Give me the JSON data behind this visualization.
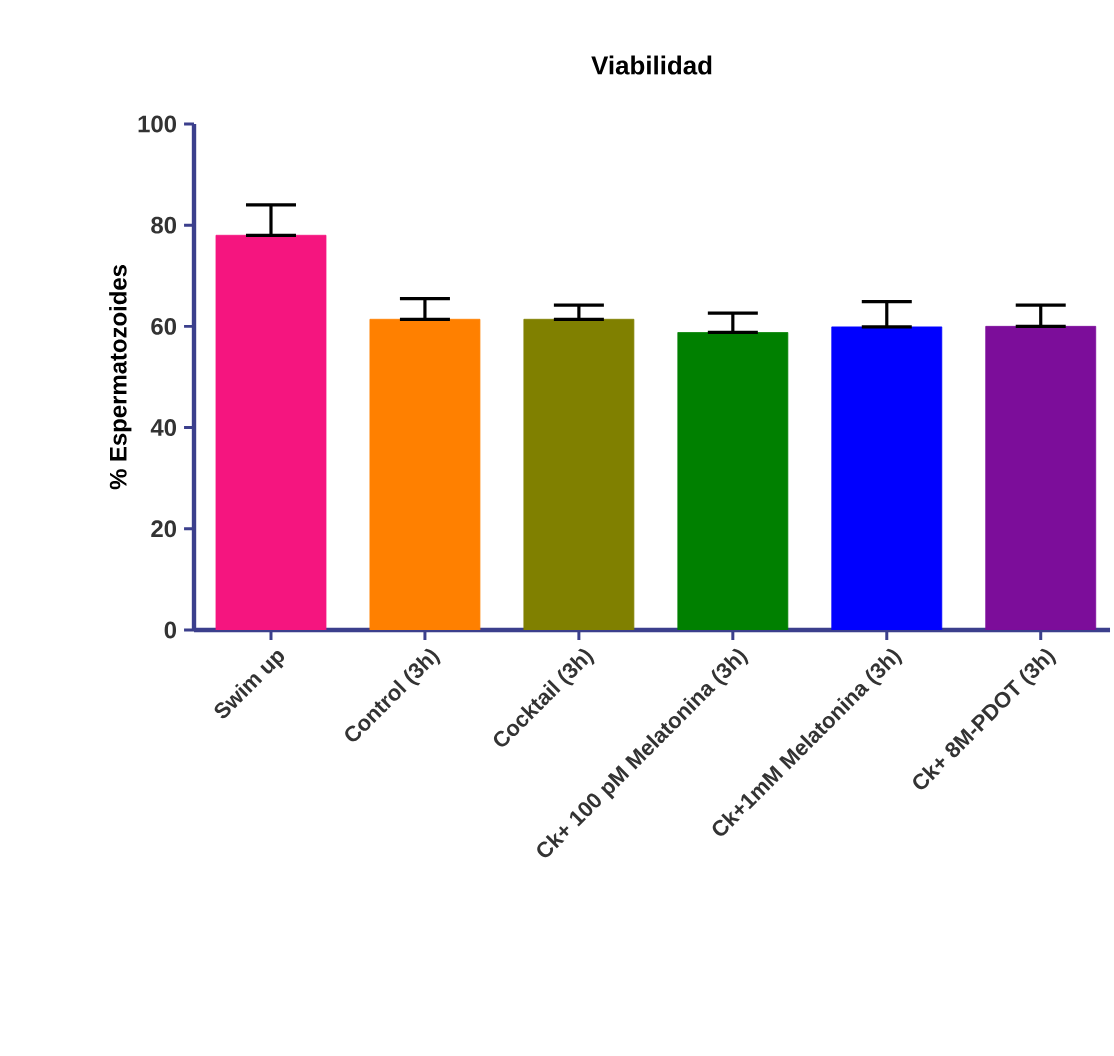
{
  "chart_data": {
    "type": "bar",
    "title": "Viabilidad",
    "ylabel": "% Espermatozoides",
    "categories": [
      "Swim up",
      "Control (3h)",
      "Cocktail (3h)",
      "Ck+ 100 pM Melatonina (3h)",
      "Ck+1mM Melatonina (3h)",
      "Ck+ 8M-PDOT (3h)"
    ],
    "values": [
      78,
      61.4,
      61.4,
      58.8,
      59.9,
      60
    ],
    "errors": [
      [
        78,
        84
      ],
      [
        61.4,
        65.5
      ],
      [
        61.4,
        64.2
      ],
      [
        58.8,
        62.6
      ],
      [
        59.9,
        64.9
      ],
      [
        60,
        64.2
      ]
    ],
    "colors": [
      "#f5157f",
      "#ff8000",
      "#808000",
      "#008000",
      "#0000ff",
      "#7c0d9a"
    ],
    "ylim": [
      0,
      100
    ],
    "yticks": [
      0,
      20,
      40,
      60,
      80,
      100
    ],
    "grid": false
  }
}
